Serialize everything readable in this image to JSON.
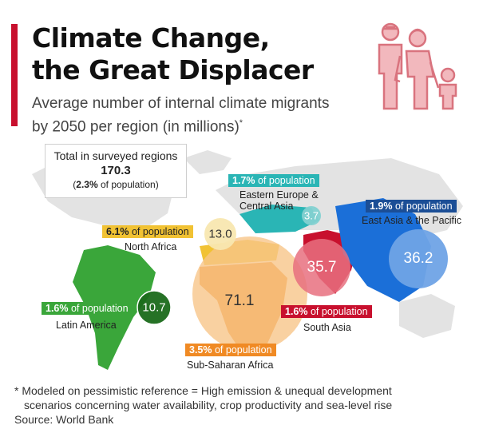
{
  "header": {
    "title_line1": "Climate Change,",
    "title_line2": "the Great Displacer",
    "subtitle_line1": "Average number of internal climate migrants",
    "subtitle_line2": "by 2050 per region (in millions)",
    "subtitle_mark": "*"
  },
  "icon": {
    "name": "migrant-family-icon",
    "color": "#e8a0a8"
  },
  "total": {
    "label": "Total in surveyed regions",
    "value": "170.3",
    "pct_open": "(",
    "pct_bold": "2.3%",
    "pct_rest": " of population)"
  },
  "pop_suffix": " of population",
  "regions": [
    {
      "name": "Eastern Europe & Central Asia",
      "name_line1": "Eastern Europe &",
      "name_line2": "Central Asia",
      "value": "3.7",
      "pct": "1.7%",
      "color": "#2ab5b5"
    },
    {
      "name": "East Asia & the Pacific",
      "value": "36.2",
      "pct": "1.9%",
      "color": "#1b4e96"
    },
    {
      "name": "North Africa",
      "value": "13.0",
      "pct": "6.1%",
      "color": "#f1c233"
    },
    {
      "name": "Latin America",
      "value": "10.7",
      "pct": "1.6%",
      "color": "#3aa63a"
    },
    {
      "name": "South Asia",
      "value": "35.7",
      "pct": "1.6%",
      "color": "#c8102e"
    },
    {
      "name": "Sub-Saharan Africa",
      "value": "71.1",
      "pct": "3.5%",
      "color": "#f08a24"
    }
  ],
  "footnote": {
    "line1": "* Modeled on pessimistic reference = High emission & unequal development",
    "line2": "scenarios concerning water availability, crop productivity and sea-level rise",
    "source": "Source: World Bank"
  }
}
